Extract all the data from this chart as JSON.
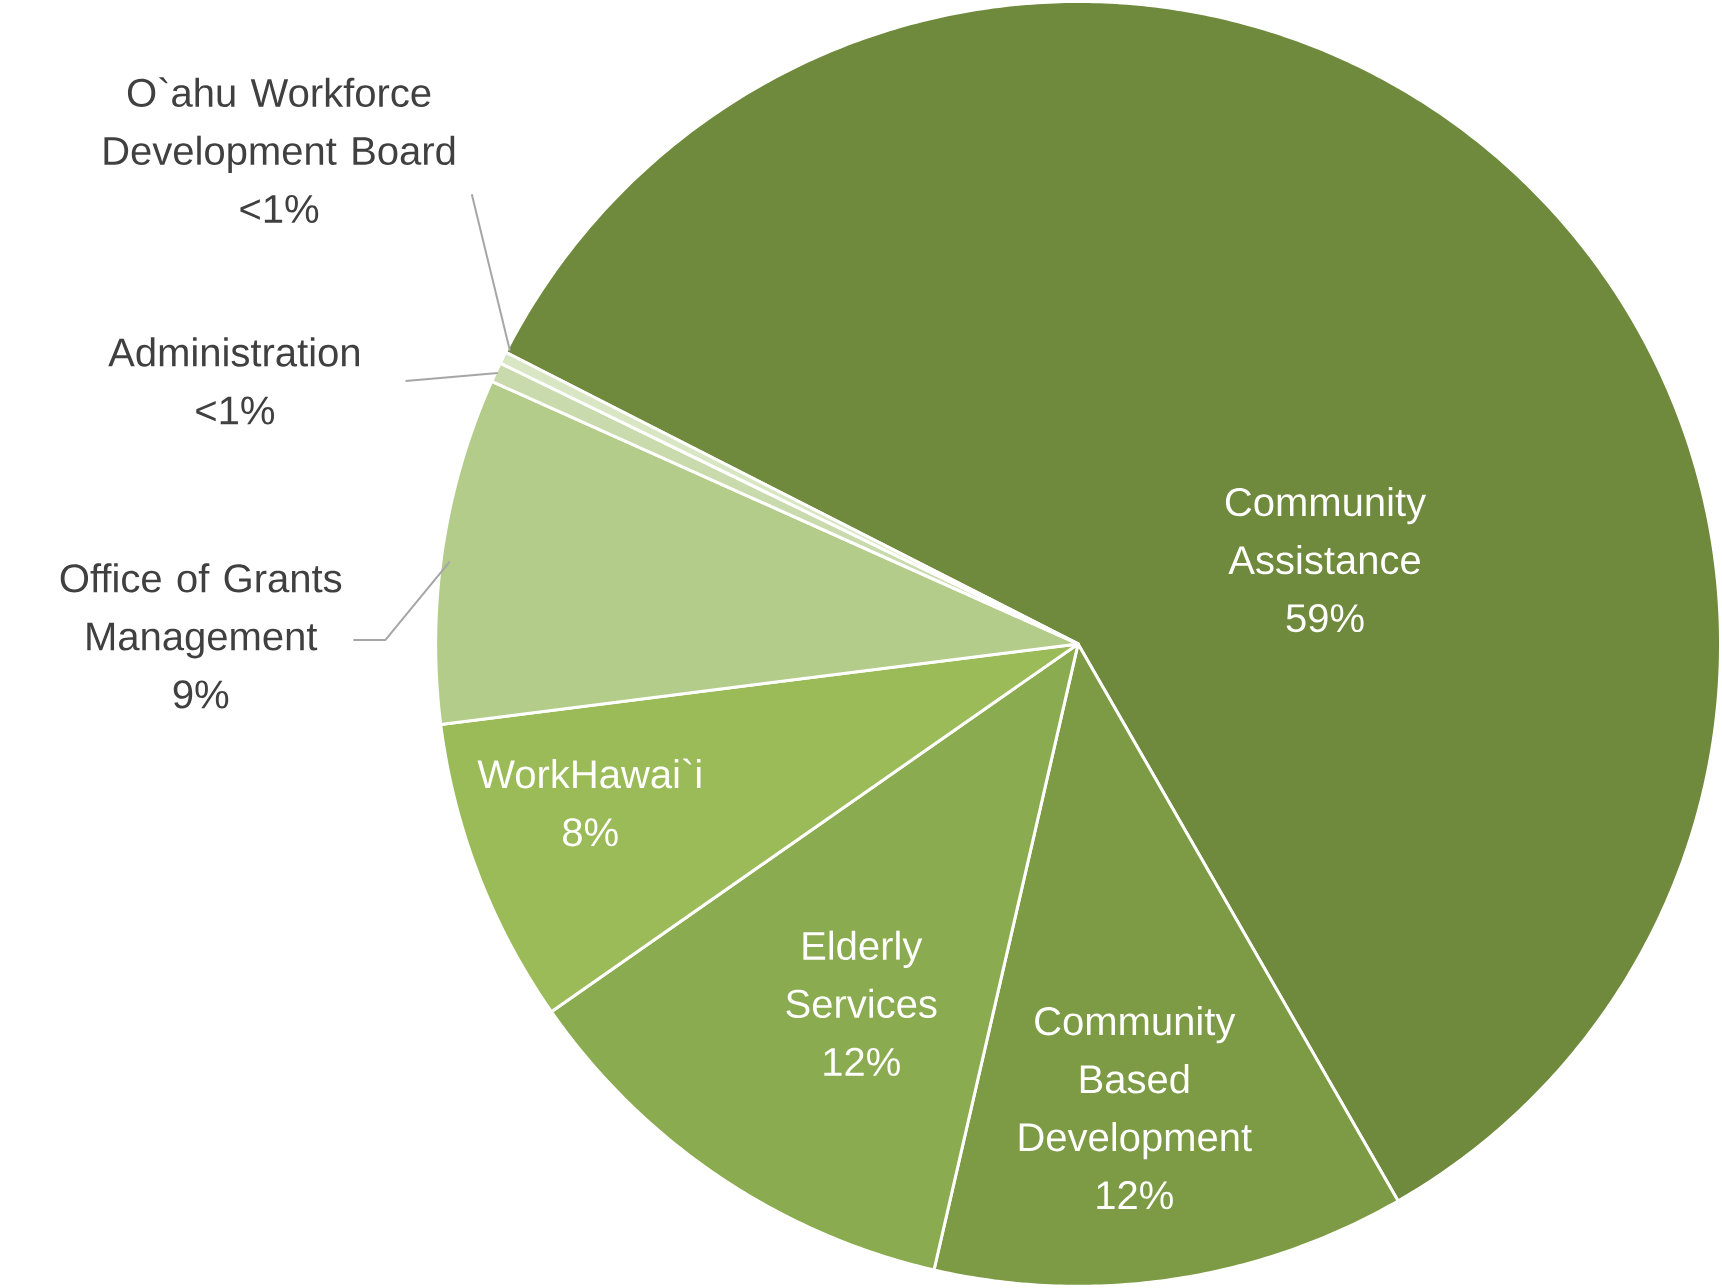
{
  "chart_data": {
    "type": "pie",
    "categories": [
      "Community Assistance",
      "Community Based Development",
      "Elderly Services",
      "WorkHawai`i",
      "Office of Grants Management",
      "Administration",
      "O`ahu Workforce Development Board"
    ],
    "values": [
      59.2,
      11.9,
      11.7,
      7.7,
      8.7,
      0.5,
      0.3
    ],
    "value_labels": [
      "59%",
      "12%",
      "12%",
      "8%",
      "9%",
      "<1%",
      "<1%"
    ],
    "colors": [
      "#6f8a3c",
      "#7d9b45",
      "#8aab4f",
      "#9bbb59",
      "#b3cc8a",
      "#c9dbac",
      "#d9e6c4"
    ]
  }
}
